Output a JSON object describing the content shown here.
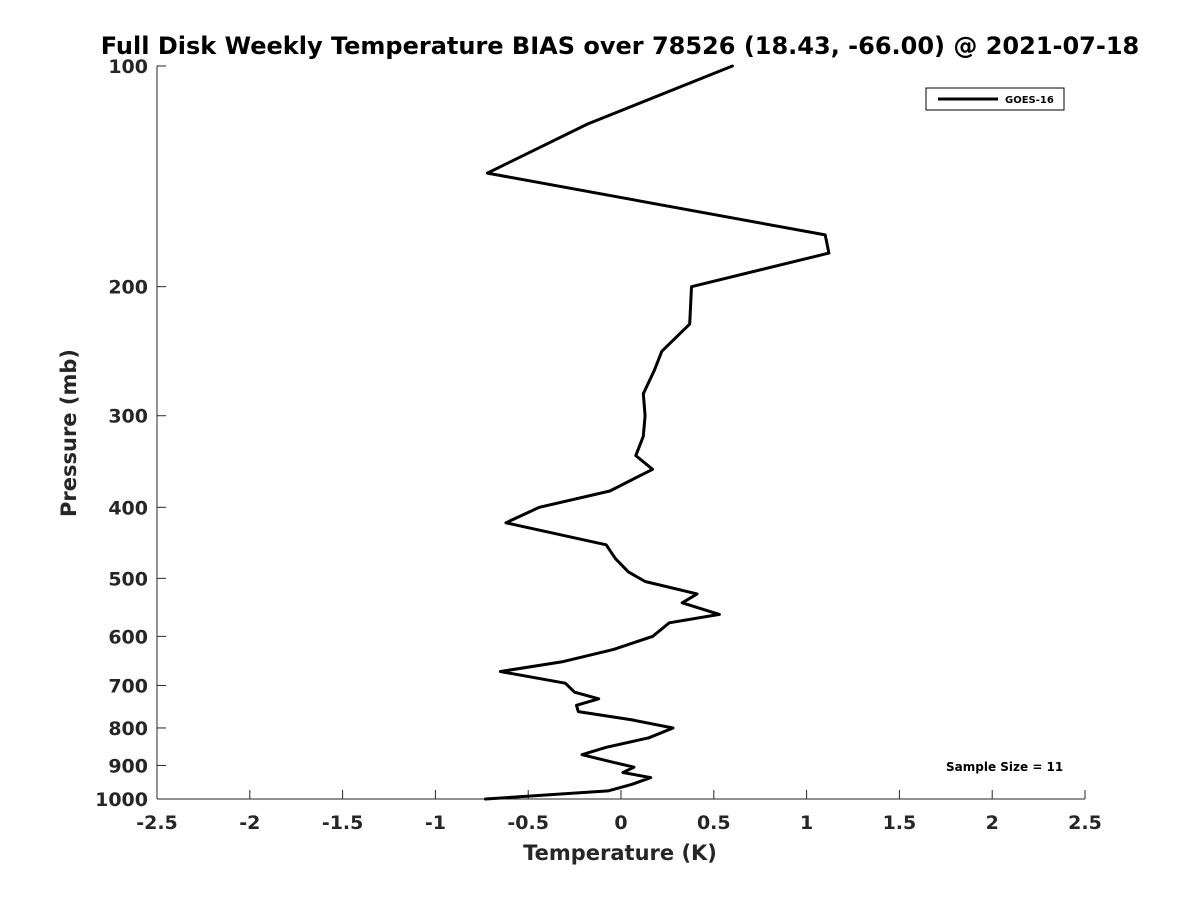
{
  "chart_data": {
    "type": "line",
    "title": "Full Disk Weekly Temperature BIAS over 78526 (18.43, -66.00) @ 2021-07-18",
    "xlabel": "Temperature (K)",
    "ylabel": "Pressure (mb)",
    "xlim": [
      -2.5,
      2.5
    ],
    "ylim": [
      100,
      1000
    ],
    "y_scale": "log",
    "y_reversed": true,
    "x_ticks": [
      "-2.5",
      "-2",
      "-1.5",
      "-1",
      "-0.5",
      "0",
      "0.5",
      "1",
      "1.5",
      "2",
      "2.5"
    ],
    "y_ticks": [
      "100",
      "200",
      "300",
      "400",
      "500",
      "600",
      "700",
      "800",
      "900",
      "1000"
    ],
    "grid": false,
    "legend_position": "top-right",
    "series": [
      {
        "name": "GOES-16",
        "color": "#000000",
        "points": [
          [
            0.6,
            100
          ],
          [
            -0.18,
            120
          ],
          [
            -0.72,
            140
          ],
          [
            1.1,
            170
          ],
          [
            1.12,
            180
          ],
          [
            0.38,
            200
          ],
          [
            0.37,
            225
          ],
          [
            0.22,
            245
          ],
          [
            0.18,
            260
          ],
          [
            0.12,
            280
          ],
          [
            0.13,
            300
          ],
          [
            0.12,
            320
          ],
          [
            0.08,
            340
          ],
          [
            0.17,
            355
          ],
          [
            -0.06,
            380
          ],
          [
            -0.44,
            400
          ],
          [
            -0.62,
            420
          ],
          [
            -0.08,
            450
          ],
          [
            -0.03,
            470
          ],
          [
            0.04,
            490
          ],
          [
            0.13,
            505
          ],
          [
            0.41,
            525
          ],
          [
            0.33,
            540
          ],
          [
            0.53,
            560
          ],
          [
            0.26,
            575
          ],
          [
            0.17,
            600
          ],
          [
            -0.04,
            625
          ],
          [
            -0.32,
            650
          ],
          [
            -0.65,
            670
          ],
          [
            -0.3,
            695
          ],
          [
            -0.25,
            715
          ],
          [
            -0.12,
            730
          ],
          [
            -0.24,
            745
          ],
          [
            -0.23,
            760
          ],
          [
            0.06,
            780
          ],
          [
            0.28,
            800
          ],
          [
            0.15,
            825
          ],
          [
            -0.08,
            850
          ],
          [
            -0.21,
            870
          ],
          [
            -0.05,
            890
          ],
          [
            0.07,
            905
          ],
          [
            0.01,
            920
          ],
          [
            0.16,
            935
          ],
          [
            0.06,
            955
          ],
          [
            -0.07,
            975
          ],
          [
            -0.73,
            1000
          ]
        ]
      }
    ],
    "annotations": [
      "Sample Size = 11"
    ]
  }
}
